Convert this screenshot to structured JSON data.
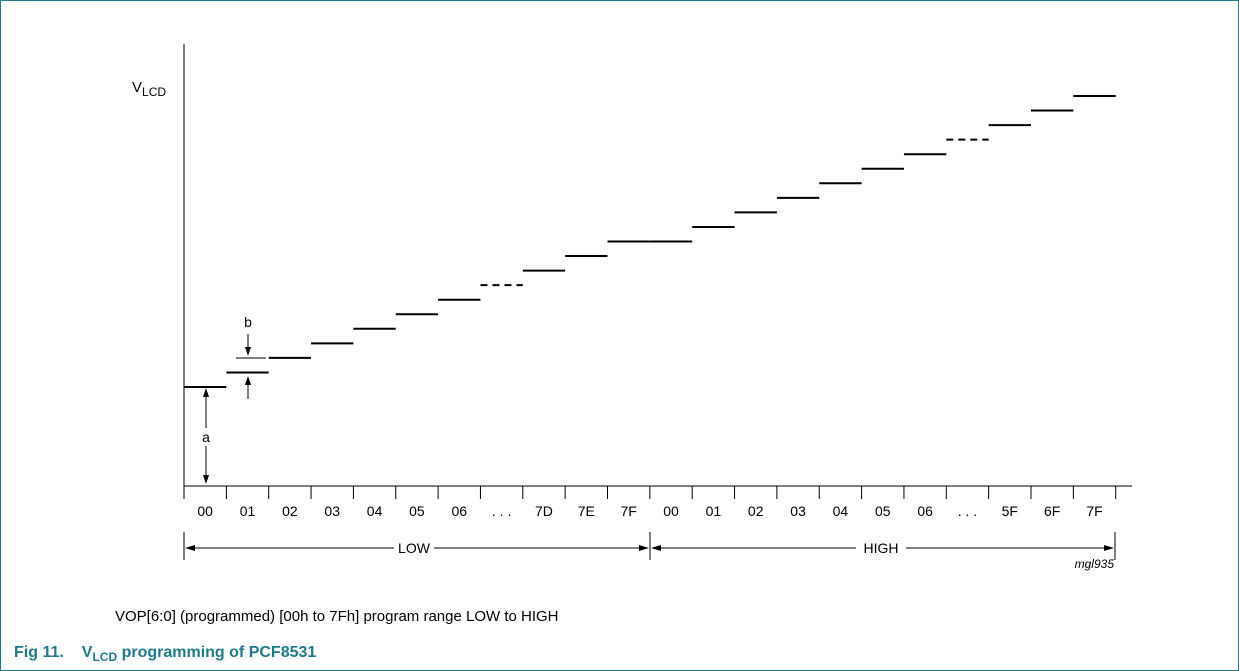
{
  "diagram": {
    "y_label": "V",
    "y_label_sub": "LCD",
    "x_ticks": [
      "00",
      "01",
      "02",
      "03",
      "04",
      "05",
      "06",
      ". . .",
      "7D",
      "7E",
      "7F",
      "00",
      "01",
      "02",
      "03",
      "04",
      "05",
      "06",
      ". . .",
      "5F",
      "6F",
      "7F"
    ],
    "range_low": "LOW",
    "range_high": "HIGH",
    "label_a": "a",
    "label_b": "b",
    "code": "mgl935"
  },
  "note": "VOP[6:0] (programmed) [00h to 7Fh] program range LOW to HIGH",
  "caption": {
    "prefix": "Fig 11.",
    "v": "V",
    "sub": "LCD",
    "rest": " programming of PCF8531"
  },
  "colors": {
    "frame": "#1f7a88",
    "caption": "#1f7a88",
    "ink": "#000000"
  }
}
